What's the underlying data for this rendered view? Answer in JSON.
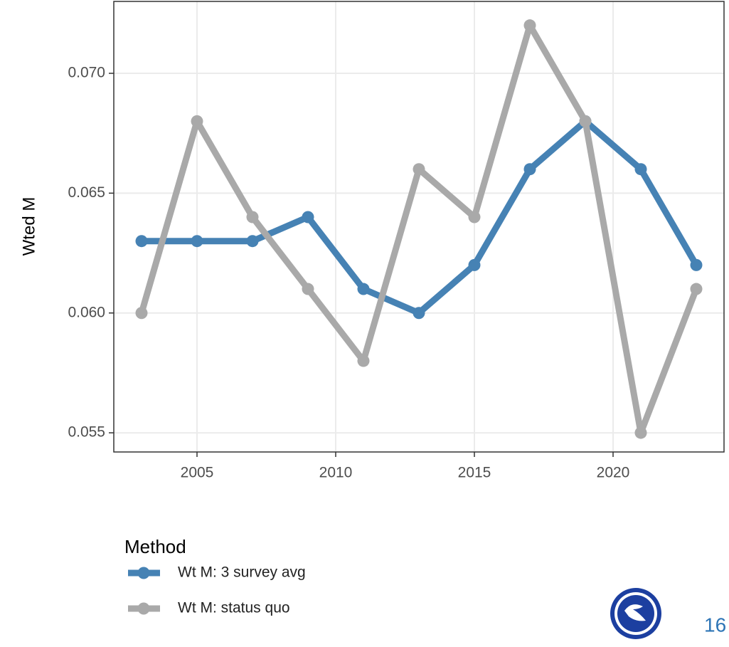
{
  "chart_data": {
    "type": "line",
    "y_label": "Wted M",
    "x": [
      2003,
      2005,
      2007,
      2009,
      2011,
      2013,
      2015,
      2017,
      2019,
      2021,
      2023
    ],
    "series": [
      {
        "name": "Wt M: 3 survey avg",
        "color": "#4682b4",
        "values": [
          0.063,
          0.063,
          0.063,
          0.064,
          0.061,
          0.06,
          0.062,
          0.066,
          0.068,
          0.066,
          0.062
        ]
      },
      {
        "name": "Wt M: status quo",
        "color": "#a9a9a9",
        "values": [
          0.06,
          0.068,
          0.064,
          0.061,
          0.058,
          0.066,
          0.064,
          0.072,
          0.068,
          0.055,
          0.061
        ]
      }
    ],
    "xlim": [
      2002,
      2024
    ],
    "xticks": [
      2005,
      2010,
      2015,
      2020
    ],
    "ylim": [
      0.0542,
      0.073
    ],
    "yticks": [
      0.055,
      {
        "value": 0.06,
        "label": "0.060"
      },
      0.065,
      {
        "value": 0.07,
        "label": "0.070"
      }
    ],
    "grid": true,
    "legend_title": "Method",
    "legend_position": "bottom"
  },
  "page_number": "16"
}
